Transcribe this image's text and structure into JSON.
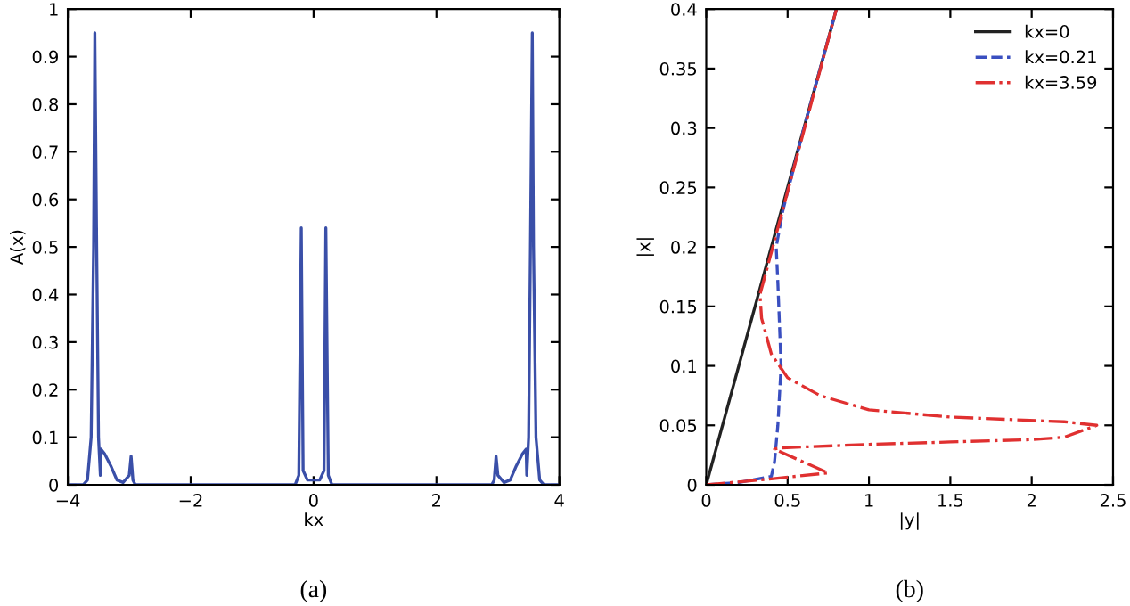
{
  "chart_data": [
    {
      "type": "line",
      "xlabel": "kx",
      "ylabel": "A(x)",
      "annotations": [
        "(a)"
      ],
      "xlim": [
        -4,
        4
      ],
      "ylim": [
        0,
        1
      ],
      "xticks": [
        {
          "value": -4,
          "label": "−4"
        },
        {
          "value": -2,
          "label": "−2"
        },
        0,
        2,
        4
      ],
      "yticks": [
        0,
        0.1,
        0.2,
        0.3,
        0.4,
        0.5,
        0.6,
        0.7,
        0.8,
        0.9,
        1
      ],
      "grid": false,
      "legend": false,
      "series": [
        {
          "color": "#3a4fa8",
          "line_style": "solid",
          "x": [
            -4,
            -3.75,
            -3.68,
            -3.62,
            -3.58,
            -3.56,
            -3.53,
            -3.5,
            -3.47,
            -3.46,
            -3.4,
            -3.3,
            -3.2,
            -3.1,
            -3.0,
            -2.97,
            -2.94,
            -2.9,
            -0.3,
            -0.24,
            -0.2,
            -0.17,
            -0.1,
            0,
            0.1,
            0.17,
            0.2,
            0.24,
            0.3,
            2.9,
            2.94,
            2.97,
            3.0,
            3.1,
            3.2,
            3.3,
            3.4,
            3.46,
            3.47,
            3.5,
            3.53,
            3.56,
            3.58,
            3.62,
            3.68,
            3.75,
            4
          ],
          "values": [
            0,
            0,
            0.01,
            0.1,
            0.5,
            0.95,
            0.5,
            0.1,
            0.02,
            0.075,
            0.065,
            0.04,
            0.01,
            0.005,
            0.02,
            0.06,
            0.01,
            0,
            0,
            0.02,
            0.54,
            0.03,
            0.01,
            0.01,
            0.01,
            0.03,
            0.54,
            0.02,
            0,
            0,
            0.01,
            0.06,
            0.02,
            0.005,
            0.01,
            0.04,
            0.065,
            0.075,
            0.02,
            0.1,
            0.5,
            0.95,
            0.5,
            0.1,
            0.01,
            0,
            0
          ]
        }
      ]
    },
    {
      "type": "line",
      "xlabel": "|y|",
      "ylabel": "|x|",
      "annotations": [
        "(b)"
      ],
      "xlim": [
        0,
        2.5
      ],
      "ylim": [
        0,
        0.4
      ],
      "xticks": [
        0,
        0.5,
        1,
        1.5,
        2,
        2.5
      ],
      "yticks": [
        0,
        0.05,
        0.1,
        0.15,
        0.2,
        0.25,
        0.3,
        0.35,
        0.4
      ],
      "grid": false,
      "legend": "top right",
      "series": [
        {
          "name": "kx=0",
          "color": "#222222",
          "line_style": "solid",
          "x": [
            0,
            0.8
          ],
          "values": [
            0,
            0.4
          ]
        },
        {
          "name": "kx=0.21",
          "color": "#3a4fc0",
          "line_style": "dashed",
          "x": [
            0,
            0.2,
            0.4,
            0.42,
            0.44,
            0.46,
            0.44,
            0.43,
            0.47,
            0.6,
            0.8
          ],
          "values": [
            0,
            0.002,
            0.007,
            0.02,
            0.05,
            0.1,
            0.17,
            0.2,
            0.23,
            0.3,
            0.4
          ]
        },
        {
          "name": "kx=3.59",
          "color": "#e03030",
          "line_style": "dashdot",
          "x": [
            0,
            0.4,
            0.75,
            0.55,
            0.42,
            0.45,
            1,
            1.5,
            2,
            2.2,
            2.4,
            2.2,
            1.5,
            1,
            0.7,
            0.5,
            0.4,
            0.34,
            0.33,
            0.37,
            0.8
          ],
          "values": [
            0,
            0.005,
            0.01,
            0.022,
            0.03,
            0.031,
            0.034,
            0.036,
            0.038,
            0.04,
            0.05,
            0.053,
            0.057,
            0.063,
            0.075,
            0.09,
            0.11,
            0.14,
            0.16,
            0.18,
            0.4
          ]
        }
      ]
    }
  ]
}
